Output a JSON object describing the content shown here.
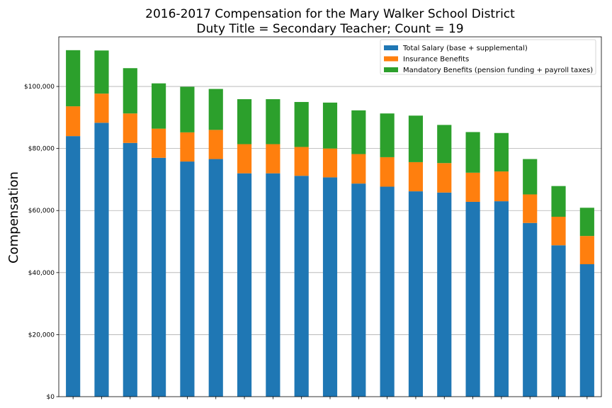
{
  "chart_data": {
    "type": "bar",
    "stacked": true,
    "title_line1": "2016-2017 Compensation for the Mary Walker School District",
    "title_line2": "Duty Title = Secondary Teacher; Count = 19",
    "xlabel": "",
    "ylabel": "Compensation",
    "ylim": [
      0,
      116000
    ],
    "yticks": [
      0,
      20000,
      40000,
      60000,
      80000,
      100000
    ],
    "ytick_labels": [
      "$0",
      "$20,000",
      "$40,000",
      "$60,000",
      "$80,000",
      "$100,000"
    ],
    "grid": "horizontal",
    "legend_position": "top-right",
    "categories": [
      "",
      "",
      "",
      "",
      "",
      "",
      "",
      "",
      "",
      "",
      "",
      "",
      "",
      "",
      "",
      "",
      "",
      "",
      ""
    ],
    "series": [
      {
        "name": "Total Salary (base + supplemental)",
        "color": "#1f77b4",
        "values": [
          84000,
          88300,
          81800,
          77000,
          75800,
          76600,
          72000,
          72000,
          71200,
          70700,
          68700,
          67700,
          66200,
          65800,
          62800,
          63000,
          56000,
          48800,
          42700
        ]
      },
      {
        "name": "Insurance Benefits",
        "color": "#ff7f0e",
        "values": [
          9600,
          9400,
          9500,
          9400,
          9400,
          9400,
          9400,
          9400,
          9300,
          9300,
          9500,
          9500,
          9400,
          9500,
          9400,
          9600,
          9200,
          9200,
          9100
        ]
      },
      {
        "name": "Mandatory Benefits (pension funding + payroll taxes)",
        "color": "#2ca02c",
        "values": [
          18100,
          13900,
          14600,
          14600,
          14700,
          13200,
          14500,
          14500,
          14500,
          14800,
          14100,
          14100,
          15000,
          12300,
          13100,
          12400,
          11400,
          9900,
          9100
        ]
      }
    ]
  }
}
